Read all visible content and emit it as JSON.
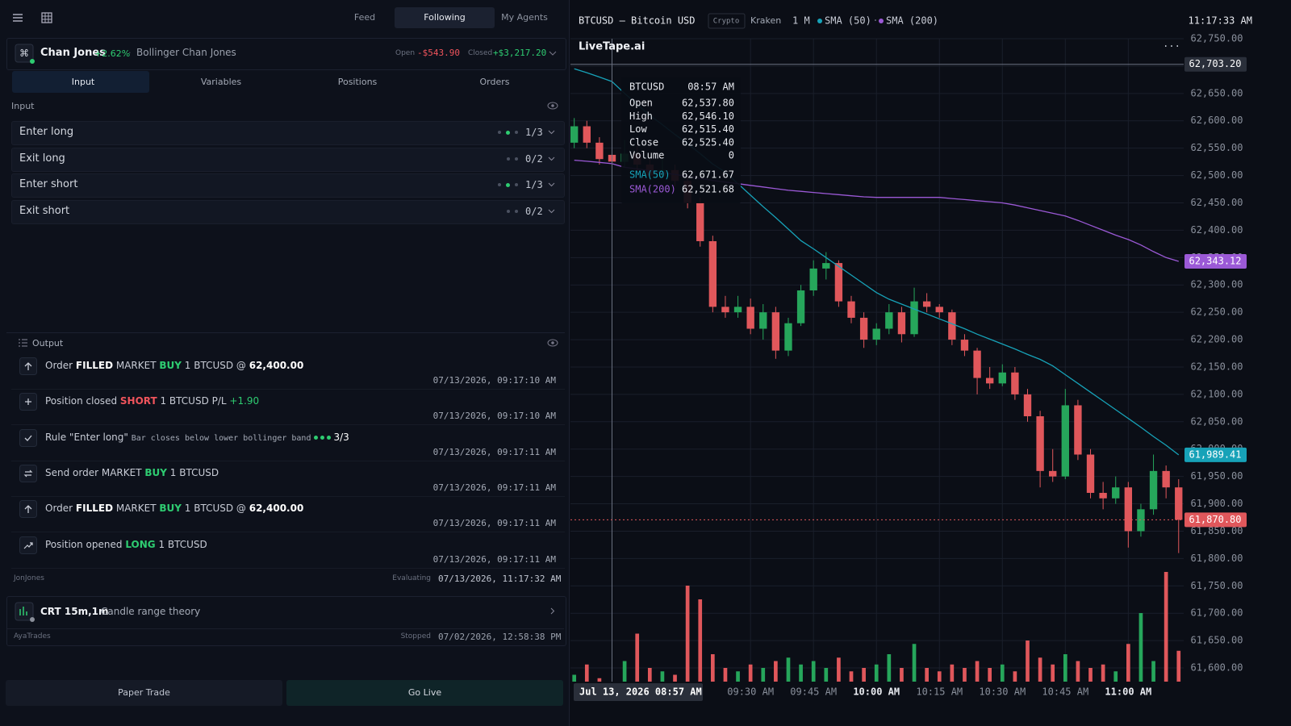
{
  "topbar": {
    "tabs": [
      "Feed",
      "Following",
      "My Agents"
    ],
    "active_tab": 1
  },
  "agent": {
    "name": "Chan Jones",
    "change": "+2.62%",
    "separator": "·",
    "strategy": "Bollinger Chan Jones",
    "open_label": "Open",
    "open_pnl": "-$543.90",
    "closed_label": "Closed",
    "closed_pnl": "+$3,217.20"
  },
  "tabs": {
    "items": [
      "Input",
      "Variables",
      "Positions",
      "Orders"
    ],
    "active": 0
  },
  "input": {
    "title": "Input",
    "rules": [
      {
        "name": "Enter long",
        "dots": [
          "off",
          "on",
          "off"
        ],
        "count": "1/3"
      },
      {
        "name": "Exit long",
        "dots": [
          "off",
          "off"
        ],
        "count": "0/2"
      },
      {
        "name": "Enter short",
        "dots": [
          "off",
          "on",
          "off"
        ],
        "count": "1/3"
      },
      {
        "name": "Exit short",
        "dots": [
          "off",
          "off"
        ],
        "count": "0/2"
      }
    ]
  },
  "output": {
    "title": "Output",
    "entries": [
      {
        "icon": "up",
        "parts": [
          {
            "text": "Order ",
            "style": "n"
          },
          {
            "text": "FILLED",
            "style": "w"
          },
          {
            "text": " MARKET ",
            "style": "n"
          },
          {
            "text": "BUY",
            "style": "g"
          },
          {
            "text": " 1 BTCUSD @ ",
            "style": "n"
          },
          {
            "text": "62,400.00",
            "style": "w"
          }
        ],
        "time": "07/13/2026, 09:17:10 AM"
      },
      {
        "icon": "plus",
        "parts": [
          {
            "text": "Position closed ",
            "style": "n"
          },
          {
            "text": "SHORT",
            "style": "r"
          },
          {
            "text": " 1 BTCUSD P/L ",
            "style": "n"
          },
          {
            "text": "+1.90",
            "style": "gn"
          }
        ],
        "time": "07/13/2026, 09:17:10 AM"
      },
      {
        "icon": "check",
        "parts": [
          {
            "text": "Rule \"Enter long\" ",
            "style": "n"
          },
          {
            "text": "Bar closes below lower bollinger band",
            "style": "m"
          }
        ],
        "dots": [
          "on",
          "on",
          "on"
        ],
        "count": "3/3",
        "time": "07/13/2026, 09:17:11 AM"
      },
      {
        "icon": "swap",
        "parts": [
          {
            "text": "Send order MARKET ",
            "style": "n"
          },
          {
            "text": "BUY",
            "style": "g"
          },
          {
            "text": " 1 BTCUSD",
            "style": "n"
          }
        ],
        "time": "07/13/2026, 09:17:11 AM"
      },
      {
        "icon": "up",
        "parts": [
          {
            "text": "Order ",
            "style": "n"
          },
          {
            "text": "FILLED",
            "style": "w"
          },
          {
            "text": " MARKET ",
            "style": "n"
          },
          {
            "text": "BUY",
            "style": "g"
          },
          {
            "text": " 1 BTCUSD @ ",
            "style": "n"
          },
          {
            "text": "62,400.00",
            "style": "w"
          }
        ],
        "time": "07/13/2026, 09:17:11 AM"
      },
      {
        "icon": "trend",
        "parts": [
          {
            "text": "Position opened ",
            "style": "n"
          },
          {
            "text": "LONG",
            "style": "g"
          },
          {
            "text": " 1 BTCUSD",
            "style": "n"
          }
        ],
        "time": "07/13/2026, 09:17:11 AM"
      }
    ]
  },
  "status": {
    "user": "JonJones",
    "state": "Evaluating",
    "time": "07/13/2026, 11:17:32 AM"
  },
  "agent2": {
    "name": "CRT 15m,1m",
    "strategy": "Candle range theory",
    "user": "AyaTrades",
    "state": "Stopped",
    "time": "07/02/2026, 12:58:38 PM"
  },
  "buttons": [
    "Paper Trade",
    "Go Live"
  ],
  "chart": {
    "type": "candlestick",
    "symbol": "BTCUSD — Bitcoin USD",
    "badge": "Crypto",
    "exchange": "Kraken",
    "interval": "1 M",
    "legend_separator": "·",
    "clock": "11:17:33 AM",
    "brand": "LiveTape.ai",
    "menu": "···",
    "up_color": "#26a65b",
    "down_color": "#e0575b",
    "ohlc": [
      [
        62560,
        62605,
        62550,
        62590
      ],
      [
        62590,
        62600,
        62550,
        62560
      ],
      [
        62560,
        62570,
        62520,
        62530
      ],
      [
        62537.8,
        62546.1,
        62515.4,
        62525.4
      ],
      [
        62525,
        62565,
        62515,
        62540
      ],
      [
        62540,
        62555,
        62505,
        62520
      ],
      [
        62520,
        62530,
        62490,
        62500
      ],
      [
        62500,
        62530,
        62495,
        62510
      ],
      [
        62510,
        62520,
        62480,
        62490
      ],
      [
        62490,
        62500,
        62440,
        62450
      ],
      [
        62450,
        62460,
        62370,
        62380
      ],
      [
        62380,
        62390,
        62250,
        62260
      ],
      [
        62260,
        62280,
        62240,
        62250
      ],
      [
        62250,
        62280,
        62240,
        62260
      ],
      [
        62260,
        62275,
        62210,
        62220
      ],
      [
        62220,
        62265,
        62200,
        62250
      ],
      [
        62250,
        62260,
        62165,
        62180
      ],
      [
        62180,
        62240,
        62170,
        62230
      ],
      [
        62230,
        62300,
        62225,
        62290
      ],
      [
        62290,
        62345,
        62280,
        62330
      ],
      [
        62330,
        62360,
        62310,
        62340
      ],
      [
        62340,
        62345,
        62260,
        62270
      ],
      [
        62270,
        62280,
        62230,
        62240
      ],
      [
        62240,
        62250,
        62185,
        62200
      ],
      [
        62200,
        62230,
        62190,
        62220
      ],
      [
        62220,
        62265,
        62210,
        62250
      ],
      [
        62250,
        62260,
        62195,
        62210
      ],
      [
        62210,
        62295,
        62205,
        62270
      ],
      [
        62270,
        62285,
        62250,
        62260
      ],
      [
        62260,
        62265,
        62240,
        62250
      ],
      [
        62250,
        62255,
        62190,
        62200
      ],
      [
        62200,
        62210,
        62170,
        62180
      ],
      [
        62180,
        62185,
        62100,
        62130
      ],
      [
        62130,
        62150,
        62110,
        62120
      ],
      [
        62120,
        62155,
        62115,
        62140
      ],
      [
        62140,
        62150,
        62090,
        62100
      ],
      [
        62100,
        62110,
        62050,
        62060
      ],
      [
        62060,
        62070,
        61930,
        61960
      ],
      [
        61960,
        62000,
        61940,
        61950
      ],
      [
        61950,
        62110,
        61945,
        62080
      ],
      [
        62080,
        62090,
        61980,
        61990
      ],
      [
        61990,
        62000,
        61910,
        61920
      ],
      [
        61920,
        61940,
        61890,
        61910
      ],
      [
        61910,
        61950,
        61900,
        61930
      ],
      [
        61930,
        61940,
        61820,
        61850
      ],
      [
        61850,
        61900,
        61840,
        61890
      ],
      [
        61890,
        61990,
        61880,
        61960
      ],
      [
        61960,
        61970,
        61910,
        61930
      ],
      [
        61930,
        61945,
        61810,
        61870.8
      ]
    ],
    "volume": [
      10,
      25,
      5,
      0,
      30,
      70,
      20,
      15,
      10,
      140,
      120,
      40,
      20,
      15,
      25,
      20,
      30,
      35,
      25,
      30,
      20,
      35,
      15,
      20,
      25,
      40,
      20,
      55,
      20,
      15,
      25,
      20,
      30,
      20,
      25,
      15,
      60,
      35,
      25,
      40,
      30,
      20,
      25,
      15,
      55,
      100,
      30,
      160,
      45
    ],
    "vlim": [
      0,
      200
    ],
    "series": [
      {
        "name": "SMA (50)",
        "color": "#17a2b8",
        "values": [
          62695,
          62688,
          62680,
          62671.67,
          62650,
          62630,
          62610,
          62593,
          62575,
          62558,
          62540,
          62521,
          62506,
          62485,
          62464,
          62443,
          62423,
          62402,
          62381,
          62366,
          62350,
          62334,
          62318,
          62302,
          62286,
          62274,
          62265,
          62256,
          62247,
          62238,
          62229,
          62220,
          62210,
          62201,
          62192,
          62183,
          62173,
          62164,
          62152,
          62136,
          62120,
          62104,
          62088,
          62072,
          62056,
          62040,
          62023,
          62007,
          61989.41
        ]
      },
      {
        "name": "SMA (200)",
        "color": "#9b59d6",
        "values": [
          62528,
          62526,
          62524,
          62521.68,
          62515,
          62512,
          62509,
          62505,
          62502,
          62498,
          62495,
          62491,
          62488,
          62485,
          62482,
          62479,
          62476,
          62473,
          62471,
          62469,
          62467,
          62465,
          62463,
          62461,
          62460,
          62460,
          62460,
          62460,
          62460,
          62460,
          62458,
          62456,
          62454,
          62452,
          62450,
          62446,
          62441,
          62436,
          62431,
          62426,
          62418,
          62409,
          62400,
          62391,
          62383,
          62373,
          62361,
          62350,
          62343.12
        ]
      }
    ],
    "ylim": [
      61575,
      62750
    ],
    "yticks": [
      {
        "value": 62750,
        "label": "62,750.00"
      },
      {
        "value": 62700,
        "label": "62,700.00"
      },
      {
        "value": 62650,
        "label": "62,650.00"
      },
      {
        "value": 62600,
        "label": "62,600.00"
      },
      {
        "value": 62550,
        "label": "62,550.00"
      },
      {
        "value": 62500,
        "label": "62,500.00"
      },
      {
        "value": 62450,
        "label": "62,450.00"
      },
      {
        "value": 62400,
        "label": "62,400.00"
      },
      {
        "value": 62350,
        "label": "62,350.00"
      },
      {
        "value": 62300,
        "label": "62,300.00"
      },
      {
        "value": 62250,
        "label": "62,250.00"
      },
      {
        "value": 62200,
        "label": "62,200.00"
      },
      {
        "value": 62150,
        "label": "62,150.00"
      },
      {
        "value": 62100,
        "label": "62,100.00"
      },
      {
        "value": 62050,
        "label": "62,050.00"
      },
      {
        "value": 62000,
        "label": "62,000.00"
      },
      {
        "value": 61950,
        "label": "61,950.00"
      },
      {
        "value": 61900,
        "label": "61,900.00"
      },
      {
        "value": 61850,
        "label": "61,850.00"
      },
      {
        "value": 61800,
        "label": "61,800.00"
      },
      {
        "value": 61750,
        "label": "61,750.00"
      },
      {
        "value": 61700,
        "label": "61,700.00"
      },
      {
        "value": 61650,
        "label": "61,650.00"
      },
      {
        "value": 61600,
        "label": "61,600.00"
      }
    ],
    "xlim": [
      -0.3,
      48.4
    ],
    "xticks": [
      {
        "value": 14,
        "label": "09:30 AM"
      },
      {
        "value": 19,
        "label": "09:45 AM"
      },
      {
        "value": 24,
        "label": "10:00 AM",
        "bold": true
      },
      {
        "value": 29,
        "label": "10:15 AM"
      },
      {
        "value": 34,
        "label": "10:30 AM"
      },
      {
        "value": 39,
        "label": "10:45 AM"
      },
      {
        "value": 44,
        "label": "11:00 AM",
        "bold": true
      }
    ],
    "grid": true,
    "crosshair": {
      "index": 3,
      "label": "Jul 13, 2026 08:57 AM",
      "price": {
        "value": 62703.2,
        "label": "62,703.20"
      }
    },
    "tooltip": {
      "symbol": "BTCUSD",
      "time": "08:57 AM",
      "rows": [
        {
          "name": "Open",
          "value": "62,537.80"
        },
        {
          "name": "High",
          "value": "62,546.10"
        },
        {
          "name": "Low",
          "value": "62,515.40"
        },
        {
          "name": "Close",
          "value": "62,525.40"
        },
        {
          "name": "Volume",
          "value": "0"
        }
      ],
      "sma": [
        {
          "name": "SMA(50)",
          "value": "62,671.67",
          "color": "#17a2b8"
        },
        {
          "name": "SMA(200)",
          "value": "62,521.68",
          "color": "#9b59d6"
        }
      ]
    },
    "price_tags": [
      {
        "value": 62343.12,
        "label": "62,343.12",
        "color": "#9b59d6"
      },
      {
        "value": 61989.41,
        "label": "61,989.41",
        "color": "#17a2b8"
      },
      {
        "value": 61870.8,
        "label": "61,870.80",
        "color": "#e0575b",
        "dashed": true
      }
    ]
  }
}
